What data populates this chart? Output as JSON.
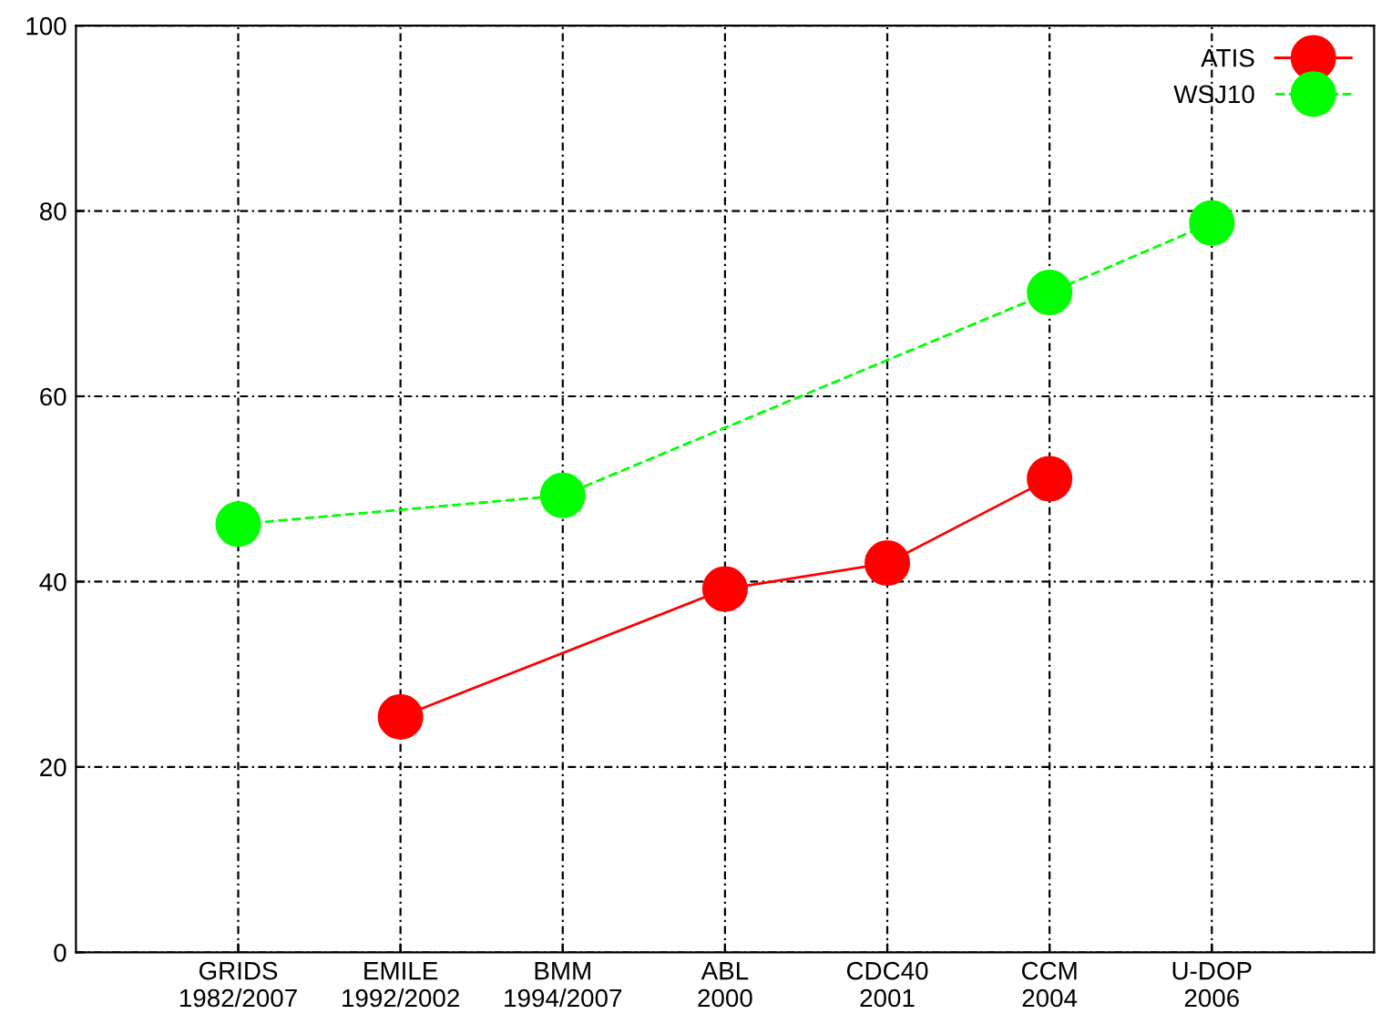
{
  "chart_data": {
    "type": "line",
    "categories": [
      "GRIDS\n1982/2007",
      "EMILE\n1992/2002",
      "BMM\n1994/2007",
      "ABL\n2000",
      "CDC40\n2001",
      "CCM\n2004",
      "U-DOP\n2006"
    ],
    "series": [
      {
        "name": "ATIS",
        "color": "#ff0000",
        "line_style": "solid",
        "values": [
          null,
          25.4,
          null,
          39.2,
          42.0,
          51.1,
          null
        ]
      },
      {
        "name": "WSJ10",
        "color": "#00ff00",
        "line_style": "dashed",
        "values": [
          46.2,
          null,
          49.3,
          null,
          null,
          71.2,
          78.7
        ]
      }
    ],
    "ylim": [
      0,
      100
    ],
    "yticks": [
      0,
      20,
      40,
      60,
      80,
      100
    ],
    "grid": true,
    "legend": "top right",
    "marker": "circle"
  }
}
